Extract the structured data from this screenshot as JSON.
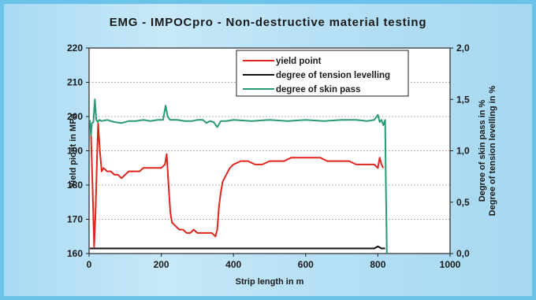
{
  "chart_data": {
    "type": "line",
    "title": "EMG - IMPOCpro - Non-destructive material testing",
    "xlabel": "Strip length in m",
    "ylabel": "Yield piont in MPa",
    "ylabel_right_1": "Degree of skin pass in %",
    "ylabel_right_2": "Degree of tension levelling in %",
    "xlim": [
      0,
      1000
    ],
    "ylim": [
      160,
      220
    ],
    "y2lim": [
      0.0,
      2.0
    ],
    "grid": "horizontal dotted",
    "legend_position": "top-right",
    "x_ticks": [
      "0",
      "200",
      "400",
      "600",
      "800",
      "1000"
    ],
    "y_ticks": [
      "160",
      "170",
      "180",
      "190",
      "200",
      "210",
      "220"
    ],
    "y2_ticks": [
      "0,0",
      "0,5",
      "1,0",
      "1,5",
      "2,0"
    ],
    "series": [
      {
        "name": "yield point",
        "axis": "left",
        "color": "#e0251c",
        "x": [
          5,
          10,
          14,
          18,
          22,
          25,
          30,
          35,
          40,
          50,
          60,
          70,
          80,
          90,
          100,
          110,
          120,
          130,
          140,
          150,
          160,
          170,
          180,
          190,
          200,
          210,
          215,
          220,
          225,
          230,
          240,
          250,
          260,
          270,
          280,
          290,
          300,
          310,
          320,
          330,
          340,
          350,
          355,
          360,
          365,
          370,
          380,
          390,
          400,
          420,
          440,
          460,
          480,
          500,
          520,
          540,
          560,
          580,
          600,
          620,
          640,
          660,
          680,
          700,
          720,
          740,
          760,
          780,
          790,
          800,
          805,
          810,
          815
        ],
        "y": [
          196,
          178,
          162,
          172,
          188,
          198,
          190,
          184,
          185,
          184,
          184,
          183,
          183,
          182,
          183,
          184,
          184,
          184,
          184,
          185,
          185,
          185,
          185,
          185,
          185,
          186,
          189,
          180,
          172,
          169,
          168,
          167,
          167,
          166,
          166,
          167,
          166,
          166,
          166,
          166,
          166,
          165,
          167,
          174,
          178,
          181,
          183,
          185,
          186,
          187,
          187,
          186,
          186,
          187,
          187,
          187,
          188,
          188,
          188,
          188,
          188,
          187,
          187,
          187,
          187,
          186,
          186,
          186,
          186,
          185,
          188,
          186,
          185
        ]
      },
      {
        "name": "degree of tension levelling",
        "axis": "right",
        "color": "#111111",
        "x": [
          2,
          10,
          20,
          50,
          100,
          200,
          300,
          400,
          500,
          600,
          700,
          790,
          800,
          805,
          810,
          820
        ],
        "y": [
          0.05,
          0.05,
          0.05,
          0.05,
          0.05,
          0.05,
          0.05,
          0.05,
          0.05,
          0.05,
          0.05,
          0.05,
          0.07,
          0.06,
          0.05,
          0.05
        ]
      },
      {
        "name": "degree of skin pass",
        "axis": "right",
        "color": "#2a9a76",
        "x": [
          2,
          5,
          8,
          12,
          16,
          20,
          24,
          28,
          35,
          50,
          70,
          90,
          110,
          130,
          150,
          170,
          190,
          205,
          212,
          218,
          225,
          245,
          265,
          285,
          300,
          315,
          325,
          335,
          345,
          355,
          365,
          380,
          400,
          450,
          500,
          550,
          600,
          650,
          700,
          740,
          770,
          790,
          800,
          805,
          810,
          815,
          820,
          822,
          825
        ],
        "y": [
          1.3,
          1.15,
          1.27,
          1.28,
          1.5,
          1.3,
          1.28,
          1.3,
          1.29,
          1.3,
          1.28,
          1.27,
          1.29,
          1.29,
          1.3,
          1.29,
          1.3,
          1.3,
          1.44,
          1.33,
          1.3,
          1.3,
          1.29,
          1.29,
          1.3,
          1.3,
          1.27,
          1.29,
          1.28,
          1.23,
          1.29,
          1.29,
          1.3,
          1.29,
          1.3,
          1.29,
          1.3,
          1.29,
          1.3,
          1.3,
          1.29,
          1.3,
          1.35,
          1.28,
          1.3,
          1.25,
          1.3,
          0.7,
          0.0
        ]
      }
    ]
  }
}
